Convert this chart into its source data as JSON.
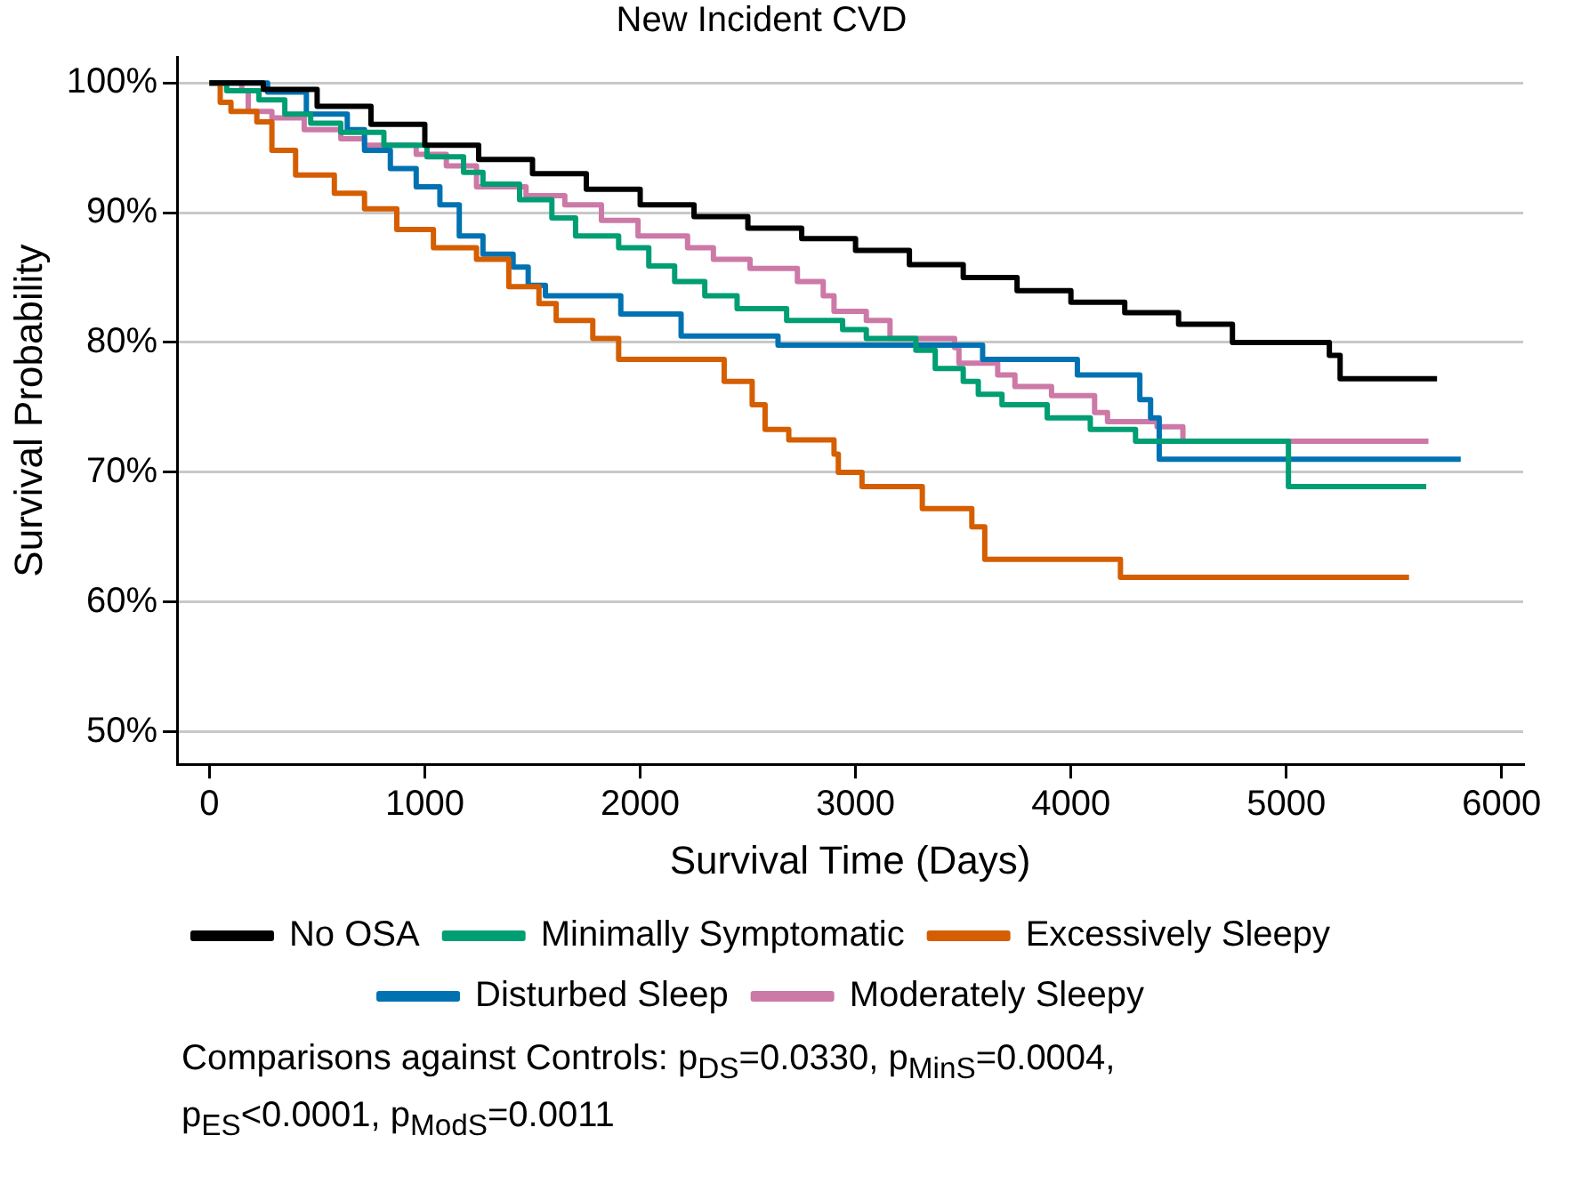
{
  "chart_data": {
    "type": "step",
    "title": "New Incident CVD",
    "xlabel": "Survival Time (Days)",
    "ylabel": "Survival Probability",
    "xlim": [
      -150,
      6100
    ],
    "xticks": [
      0,
      1000,
      2000,
      3000,
      4000,
      5000,
      6000
    ],
    "ylim": [
      47.5,
      102
    ],
    "yticks": [
      {
        "value": 50,
        "label": "50%"
      },
      {
        "value": 60,
        "label": "60%"
      },
      {
        "value": 70,
        "label": "70%"
      },
      {
        "value": 80,
        "label": "80%"
      },
      {
        "value": 90,
        "label": "90%"
      },
      {
        "value": 100,
        "label": "100%"
      }
    ],
    "grid": "y",
    "legend": "bottom",
    "marker": "none",
    "line_style": "solid",
    "series": [
      {
        "name": "No OSA",
        "color": "#000000",
        "x": [
          0,
          250,
          500,
          750,
          1000,
          1250,
          1500,
          1750,
          2000,
          2250,
          2500,
          2750,
          3000,
          3250,
          3500,
          3750,
          4000,
          4250,
          4500,
          4750,
          5160,
          5200,
          5250,
          5700
        ],
        "values": [
          100,
          99.5,
          98.2,
          96.8,
          95.2,
          94.1,
          93,
          91.8,
          90.6,
          89.7,
          88.8,
          88,
          87.1,
          86,
          85,
          84,
          83.1,
          82.3,
          81.4,
          80,
          80,
          79,
          77.2,
          77.2
        ]
      },
      {
        "name": "Minimally Symptomatic",
        "color": "#009e73",
        "x": [
          0,
          80,
          230,
          350,
          470,
          610,
          810,
          1010,
          1180,
          1270,
          1440,
          1590,
          1700,
          1900,
          2040,
          2160,
          2300,
          2450,
          2680,
          2940,
          3050,
          3280,
          3370,
          3500,
          3570,
          3680,
          3890,
          4090,
          4300,
          5010,
          5650
        ],
        "values": [
          100,
          99.4,
          98.7,
          97.6,
          96.9,
          96.2,
          95.2,
          94.3,
          93.1,
          92.2,
          91,
          89.6,
          88.2,
          87.3,
          85.9,
          84.7,
          83.6,
          82.6,
          81.7,
          81,
          80.3,
          79.4,
          78,
          77,
          76,
          75.2,
          74.2,
          73.3,
          72.4,
          68.9,
          68.9
        ]
      },
      {
        "name": "Excessively Sleepy",
        "color": "#d55e00",
        "x": [
          0,
          50,
          100,
          220,
          290,
          400,
          580,
          720,
          870,
          1040,
          1240,
          1390,
          1530,
          1610,
          1780,
          1900,
          2390,
          2520,
          2580,
          2690,
          2900,
          2920,
          3030,
          3310,
          3540,
          3600,
          4230,
          5570
        ],
        "values": [
          100,
          98.5,
          97.8,
          97,
          94.8,
          92.9,
          91.5,
          90.3,
          88.7,
          87.3,
          86.4,
          84.3,
          83,
          81.7,
          80.3,
          78.7,
          77,
          75.2,
          73.3,
          72.5,
          71.4,
          70,
          68.9,
          67.2,
          65.8,
          63.3,
          61.9,
          61.9
        ]
      },
      {
        "name": "Disturbed Sleep",
        "color": "#0072b2",
        "x": [
          0,
          270,
          450,
          640,
          720,
          840,
          960,
          1070,
          1160,
          1270,
          1410,
          1480,
          1560,
          1910,
          2190,
          2640,
          3590,
          4030,
          4320,
          4370,
          4410,
          5810
        ],
        "values": [
          100,
          99.3,
          97.6,
          96.4,
          94.8,
          93.4,
          92,
          90.6,
          88.2,
          86.8,
          85.8,
          84.4,
          83.6,
          82.2,
          80.5,
          79.8,
          78.7,
          77.5,
          75.6,
          74.2,
          71,
          71
        ]
      },
      {
        "name": "Moderately Sleepy",
        "color": "#cc79a7",
        "x": [
          0,
          150,
          180,
          290,
          440,
          610,
          720,
          960,
          1100,
          1240,
          1470,
          1650,
          1820,
          1990,
          2220,
          2340,
          2510,
          2730,
          2850,
          2900,
          3050,
          3160,
          3460,
          3480,
          3660,
          3740,
          3910,
          4110,
          4170,
          4400,
          4520,
          5660
        ],
        "values": [
          100,
          99.4,
          97.8,
          97.3,
          96.4,
          95.7,
          95.2,
          94.5,
          93.6,
          92,
          91.3,
          90.6,
          89.4,
          88.2,
          87.3,
          86.4,
          85.7,
          84.7,
          83.6,
          82.4,
          81.7,
          80.3,
          79.6,
          78.4,
          77.5,
          76.6,
          75.9,
          74.6,
          73.9,
          73.5,
          72.4,
          72.4
        ]
      }
    ],
    "annotations": [
      "Comparisons against Controls: p$_{DS}$=0.0330, p$_{MinS}$=0.0004, p$_{ES}$<0.0001, p$_{ModS}$=0.0011"
    ]
  }
}
